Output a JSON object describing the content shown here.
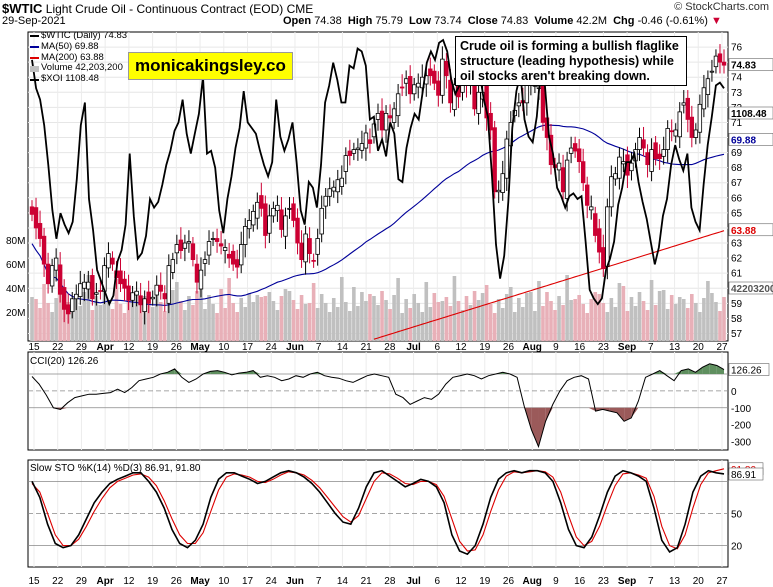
{
  "header": {
    "symbol": "$WTIC",
    "name": "Light Crude Oil - Continuous Contract (EOD)",
    "exchange": "CME",
    "date": "29-Sep-2021",
    "open_label": "Open",
    "open": "74.38",
    "high_label": "High",
    "high": "75.79",
    "low_label": "Low",
    "low": "73.74",
    "close_label": "Close",
    "close": "74.83",
    "volume_label": "Volume",
    "volume": "42.2M",
    "chg_label": "Chg",
    "chg": "-0.46 (-0.61%)",
    "brand": "© StockCharts.com"
  },
  "annotation": "Crude oil is forming a bullish flaglike structure (leading hypothesis) while oil stocks aren't breaking down.",
  "watermark": "monicakingsley.co",
  "legend": {
    "main": "$WTIC (Daily) 74.83",
    "ma50": "MA(50) 69.88",
    "ma200": "MA(200) 63.88",
    "volume": "Volume 42,203,200",
    "xoi": "$XOI 1108.48"
  },
  "colors": {
    "up": "#000000",
    "down": "#cc0033",
    "ma50": "#000099",
    "ma200": "#dd0000",
    "vol": "#c0c0c0",
    "volDown": "#e8b0b8",
    "cciPos": "#5f8f5f",
    "cciNeg": "#9b5a5a",
    "stoK": "#000000",
    "stoD": "#dd0000"
  },
  "panel_labels": {
    "cci": "CCI(20) 126.26",
    "sto": "Slow STO %K(14) %D(3) 86.91, 91.80"
  },
  "chart_data": [
    {
      "type": "candlestick",
      "title": "$WTIC Light Crude Oil - Continuous Contract (EOD)",
      "ylim": [
        56.5,
        77
      ],
      "yticks": [
        "76",
        "75",
        "74",
        "73",
        "72",
        "71",
        "70",
        "69",
        "68",
        "67",
        "66",
        "65",
        "64",
        "63",
        "62",
        "61",
        "60",
        "59",
        "58",
        "57"
      ],
      "volume_ticks": [
        "80M",
        "60M",
        "40M",
        "20M"
      ],
      "price_badges": [
        "74.83",
        "1108.48",
        "69.88",
        "63.88",
        "42203200"
      ],
      "xticks": [
        "15",
        "22",
        "29",
        "Apr",
        "12",
        "19",
        "26",
        "May",
        "10",
        "17",
        "24",
        "Jun",
        "7",
        "14",
        "21",
        "28",
        "Jul",
        "6",
        "12",
        "19",
        "26",
        "Aug",
        "9",
        "16",
        "23",
        "Sep",
        "7",
        "13",
        "20",
        "27"
      ],
      "wtic_close": [
        64.9,
        64.0,
        63.3,
        61.6,
        60.3,
        61.5,
        62.0,
        59.6,
        58.6,
        58.3,
        59.3,
        59.6,
        60.3,
        60.4,
        60.4,
        59.3,
        59.7,
        59.8,
        61.5,
        62.3,
        61.6,
        60.7,
        60.3,
        60.0,
        59.2,
        59.7,
        59.8,
        58.9,
        59.3,
        59.0,
        59.4,
        60.2,
        59.8,
        59.3,
        61.5,
        61.9,
        62.9,
        62.5,
        63.0,
        63.1,
        61.9,
        60.4,
        61.2,
        61.9,
        63.1,
        63.3,
        63.1,
        62.8,
        62.7,
        62.0,
        61.6,
        61.4,
        62.9,
        64.1,
        64.5,
        65.1,
        65.7,
        65.3,
        63.5,
        64.8,
        65.3,
        65.5,
        63.9,
        64.8,
        65.3,
        64.5,
        63.0,
        61.9,
        63.6,
        62.3,
        61.8,
        63.3,
        65.3,
        66.1,
        66.6,
        66.7,
        67.2,
        67.3,
        68.8,
        68.8,
        69.2,
        69.3,
        69.6,
        70.3,
        69.6,
        70.9,
        71.6,
        70.5,
        71.6,
        71.3,
        71.9,
        72.9,
        73.3,
        73.9,
        72.9,
        73.5,
        73.6,
        74.0,
        74.1,
        74.1,
        73.6,
        72.8,
        75.2,
        74.1,
        72.3,
        73.5,
        72.7,
        75.4,
        73.5,
        73.8,
        71.9,
        73.0,
        73.0,
        71.3,
        70.5,
        66.4,
        66.5,
        67.6,
        69.9,
        71.0,
        71.8,
        72.3,
        72.3,
        73.6,
        73.7,
        73.7,
        73.9,
        71.0,
        70.0,
        68.2,
        68.0,
        68.3,
        66.4,
        68.5,
        69.3,
        69.1,
        68.4,
        67.0,
        65.5,
        65.4,
        63.5,
        62.4,
        61.3,
        65.4,
        67.4,
        67.6,
        68.7,
        68.4,
        67.5,
        68.3,
        69.2,
        70.0,
        69.3,
        68.2,
        69.2,
        68.6,
        68.6,
        69.2,
        70.6,
        70.4,
        70.5,
        71.7,
        72.3,
        71.2,
        70.0,
        70.5,
        72.2,
        73.3,
        73.9,
        74.4,
        75.4,
        75.0,
        74.8
      ],
      "xoi_normalized_pct_of_range": [
        93,
        83,
        79,
        70,
        56,
        40,
        30,
        39,
        35,
        32,
        36,
        51,
        70,
        78,
        44,
        33,
        19,
        15,
        11,
        7,
        10,
        22,
        26,
        35,
        60,
        38,
        23,
        25,
        31,
        44,
        41,
        43,
        49,
        56,
        61,
        68,
        71,
        79,
        67,
        60,
        67,
        74,
        87,
        60,
        61,
        55,
        40,
        32,
        44,
        52,
        62,
        69,
        82,
        71,
        69,
        67,
        61,
        56,
        52,
        57,
        79,
        66,
        61,
        65,
        71,
        57,
        40,
        35,
        50,
        48,
        41,
        56,
        78,
        84,
        92,
        86,
        78,
        78,
        91,
        90,
        97,
        96,
        91,
        72,
        73,
        61,
        65,
        59,
        71,
        67,
        51,
        50,
        62,
        69,
        74,
        72,
        82,
        92,
        96,
        93,
        99,
        100,
        96,
        86,
        81,
        84,
        90,
        94,
        98,
        94,
        88,
        79,
        73,
        52,
        28,
        16,
        24,
        43,
        69,
        82,
        88,
        72,
        66,
        64,
        73,
        90,
        84,
        66,
        60,
        48,
        45,
        41,
        45,
        46,
        44,
        45,
        29,
        12,
        9,
        7,
        9,
        19,
        23,
        29,
        42,
        48,
        57,
        57,
        60,
        50,
        43,
        37,
        29,
        21,
        27,
        38,
        44,
        56,
        63,
        58,
        54,
        60,
        41,
        36,
        33,
        49,
        63,
        73,
        84,
        85,
        83
      ]
    },
    {
      "type": "line",
      "title": "CCI(20) 126.26",
      "ylim": [
        -350,
        230
      ],
      "yticks": [
        "126.26",
        "0",
        "-100",
        "-200",
        "-300"
      ],
      "values_sample": [
        85,
        40,
        -25,
        -100,
        -110,
        -70,
        -40,
        -30,
        -20,
        -20,
        -15,
        -10,
        10,
        -10,
        20,
        60,
        70,
        80,
        100,
        110,
        130,
        80,
        50,
        70,
        100,
        115,
        120,
        110,
        95,
        105,
        110,
        120,
        80,
        90,
        80,
        60,
        70,
        90,
        80,
        100,
        110,
        90,
        80,
        75,
        60,
        50,
        70,
        90,
        100,
        90,
        80,
        -20,
        -40,
        -80,
        -60,
        -40,
        -50,
        -20,
        40,
        80,
        90,
        100,
        90,
        70,
        90,
        100,
        110,
        100,
        80,
        -90,
        -230,
        -330,
        -180,
        -80,
        0,
        60,
        80,
        90,
        70,
        -120,
        -110,
        -120,
        -130,
        -180,
        -160,
        -60,
        80,
        100,
        120,
        90,
        60,
        120,
        130,
        110,
        140,
        160,
        150,
        126
      ]
    },
    {
      "type": "line",
      "title": "Slow STO %K(14) %D(3) 86.91, 91.80",
      "ylim": [
        0,
        100
      ],
      "yticks": [
        "91.80",
        "86.91",
        "50",
        "20"
      ],
      "k_sample": [
        80,
        65,
        40,
        22,
        18,
        20,
        30,
        45,
        60,
        70,
        78,
        82,
        85,
        88,
        88,
        80,
        70,
        55,
        35,
        22,
        18,
        25,
        40,
        65,
        82,
        88,
        88,
        85,
        82,
        78,
        80,
        84,
        88,
        90,
        88,
        84,
        78,
        70,
        60,
        50,
        42,
        40,
        55,
        75,
        88,
        90,
        85,
        80,
        75,
        78,
        82,
        80,
        75,
        60,
        30,
        15,
        12,
        20,
        40,
        65,
        82,
        88,
        90,
        88,
        90,
        90,
        88,
        80,
        60,
        35,
        20,
        18,
        28,
        48,
        70,
        85,
        90,
        88,
        85,
        80,
        55,
        25,
        14,
        18,
        40,
        70,
        85,
        90,
        88,
        87
      ],
      "d_sample": [
        78,
        70,
        50,
        30,
        20,
        20,
        26,
        38,
        52,
        64,
        74,
        80,
        83,
        86,
        87,
        84,
        76,
        62,
        45,
        30,
        22,
        22,
        32,
        52,
        72,
        84,
        87,
        86,
        84,
        80,
        79,
        82,
        86,
        89,
        88,
        86,
        81,
        74,
        65,
        56,
        47,
        42,
        48,
        64,
        80,
        88,
        87,
        83,
        78,
        77,
        80,
        80,
        77,
        66,
        45,
        24,
        15,
        16,
        30,
        52,
        72,
        85,
        89,
        88,
        89,
        90,
        89,
        84,
        70,
        48,
        28,
        20,
        24,
        38,
        58,
        76,
        87,
        88,
        86,
        83,
        66,
        38,
        20,
        17,
        30,
        55,
        77,
        88,
        90,
        91.8
      ]
    }
  ]
}
